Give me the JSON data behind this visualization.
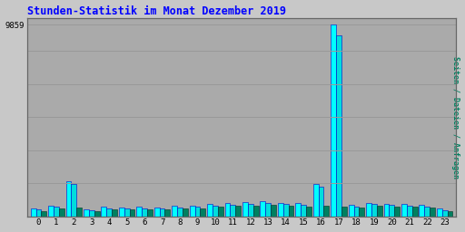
{
  "title": "Stunden-Statistik im Monat Dezember 2019",
  "title_color": "#0000FF",
  "ylabel": "9859",
  "right_label": "Seiten / Dateien / Anfragen",
  "categories": [
    0,
    1,
    2,
    3,
    4,
    5,
    6,
    7,
    8,
    9,
    10,
    11,
    12,
    13,
    14,
    15,
    16,
    17,
    18,
    19,
    20,
    21,
    22,
    23
  ],
  "pages": [
    420,
    560,
    1780,
    370,
    480,
    470,
    480,
    470,
    540,
    560,
    620,
    680,
    720,
    760,
    680,
    660,
    1650,
    9859,
    570,
    700,
    640,
    620,
    590,
    390
  ],
  "files": [
    350,
    490,
    1650,
    310,
    410,
    400,
    415,
    400,
    470,
    490,
    560,
    610,
    650,
    680,
    620,
    590,
    1510,
    9280,
    510,
    630,
    580,
    550,
    520,
    330
  ],
  "requests": [
    270,
    420,
    430,
    260,
    360,
    350,
    360,
    350,
    400,
    420,
    480,
    530,
    560,
    590,
    550,
    510,
    540,
    500,
    430,
    550,
    500,
    480,
    460,
    280
  ],
  "bar_color_cyan": "#00FFFF",
  "bar_color_lteal": "#00DDDD",
  "bar_color_teal": "#008060",
  "bg_color": "#C8C8C8",
  "plot_bg_color": "#AAAAAA",
  "grid_color": "#999999",
  "ylim": [
    0,
    10200
  ],
  "yticks": [
    9859
  ],
  "bar_width": 0.3,
  "figsize": [
    5.12,
    2.56
  ],
  "dpi": 100
}
